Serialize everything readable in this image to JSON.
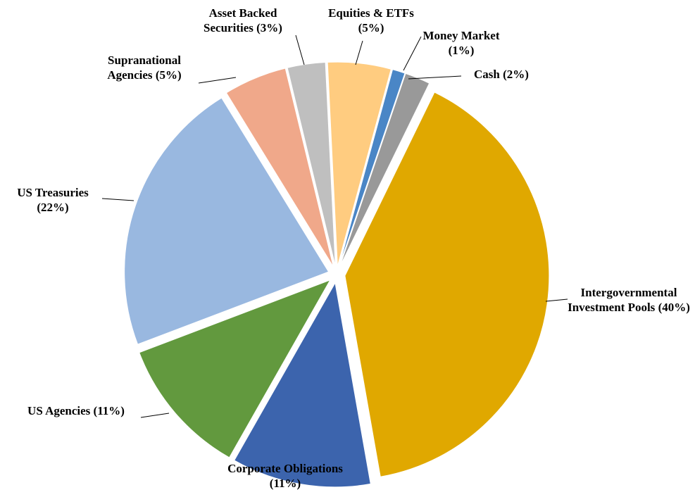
{
  "chart_data": {
    "type": "pie",
    "categories": [
      "Intergovernmental Investment Pools",
      "Corporate Obligations",
      "US Agencies",
      "US Treasuries",
      "Supranational Agencies",
      "Asset Backed Securities",
      "Equities & ETFs",
      "Money Market",
      "Cash"
    ],
    "values": [
      40,
      11,
      11,
      22,
      5,
      3,
      5,
      1,
      2
    ],
    "value_labels": [
      "(40%)",
      "(11%)",
      "(11%)",
      "(22%)",
      "(5%)",
      "(3%)",
      "(5%)",
      "(1%)",
      "(2%)"
    ],
    "colors": [
      "#e0a800",
      "#3c64ad",
      "#62993e",
      "#99b8e0",
      "#f0a88a",
      "#bfbfbf",
      "#ffcc80",
      "#4a86c6",
      "#999999"
    ]
  }
}
